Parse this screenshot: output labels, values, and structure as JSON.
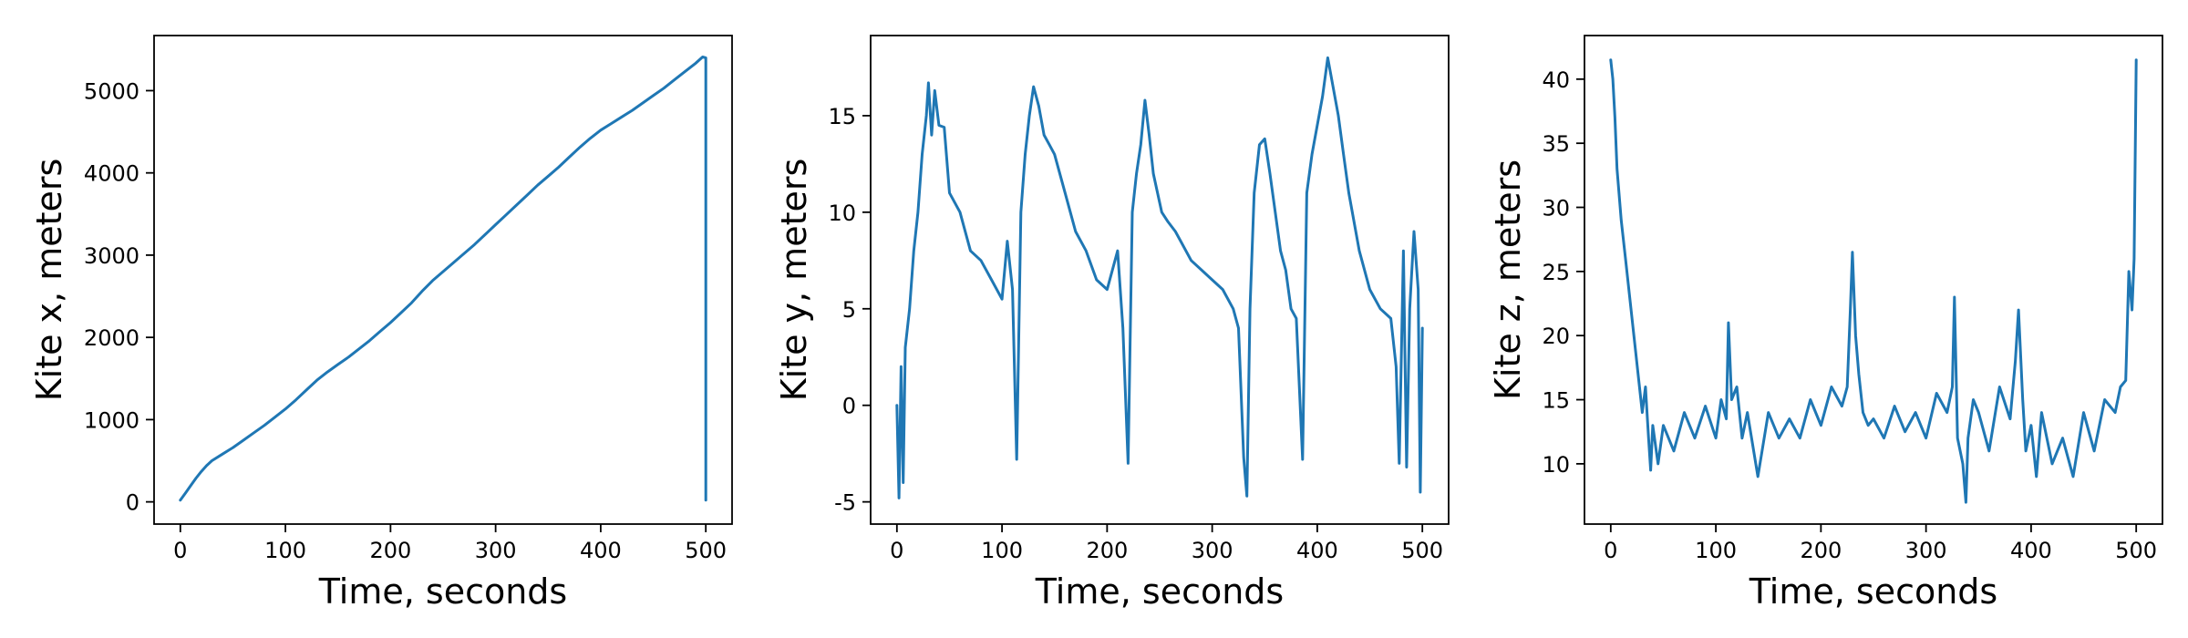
{
  "colors": {
    "series": "#1f77b4",
    "axes": "#000000",
    "background": "#ffffff"
  },
  "chart_data": [
    {
      "type": "line",
      "xlabel": "Time, seconds",
      "ylabel": "Kite x, meters",
      "xlim": [
        -25,
        525
      ],
      "ylim": [
        -270,
        5670
      ],
      "xticks": [
        0,
        100,
        200,
        300,
        400,
        500
      ],
      "yticks": [
        0,
        1000,
        2000,
        3000,
        4000,
        5000
      ],
      "grid": false,
      "legend": "none",
      "series": [
        {
          "x": [
            0,
            5,
            10,
            15,
            20,
            25,
            30,
            40,
            50,
            60,
            70,
            80,
            90,
            100,
            110,
            120,
            130,
            140,
            150,
            160,
            170,
            180,
            190,
            200,
            210,
            220,
            230,
            240,
            250,
            260,
            270,
            280,
            290,
            300,
            310,
            320,
            330,
            340,
            350,
            360,
            370,
            380,
            390,
            400,
            410,
            420,
            430,
            440,
            450,
            460,
            470,
            480,
            490,
            497,
            500,
            500,
            500
          ],
          "y": [
            20,
            110,
            200,
            290,
            370,
            440,
            500,
            580,
            660,
            750,
            840,
            930,
            1030,
            1130,
            1240,
            1360,
            1480,
            1580,
            1670,
            1760,
            1860,
            1960,
            2070,
            2180,
            2300,
            2420,
            2560,
            2690,
            2800,
            2910,
            3020,
            3130,
            3250,
            3370,
            3490,
            3610,
            3730,
            3850,
            3960,
            4070,
            4190,
            4310,
            4420,
            4520,
            4600,
            4680,
            4760,
            4850,
            4940,
            5030,
            5130,
            5230,
            5330,
            5410,
            5400,
            3000,
            20
          ]
        }
      ]
    },
    {
      "type": "line",
      "xlabel": "Time, seconds",
      "ylabel": "Kite y, meters",
      "xlim": [
        -25,
        525
      ],
      "ylim": [
        -6.15,
        19.15
      ],
      "xticks": [
        0,
        100,
        200,
        300,
        400,
        500
      ],
      "yticks": [
        -5,
        0,
        5,
        10,
        15
      ],
      "grid": false,
      "legend": "none",
      "series": [
        {
          "x": [
            0,
            2,
            4,
            6,
            8,
            12,
            16,
            20,
            24,
            28,
            30,
            33,
            36,
            40,
            45,
            50,
            60,
            70,
            80,
            90,
            100,
            105,
            110,
            114,
            118,
            122,
            126,
            130,
            135,
            140,
            145,
            150,
            160,
            170,
            180,
            190,
            200,
            210,
            215,
            220,
            224,
            228,
            232,
            236,
            240,
            244,
            248,
            252,
            258,
            265,
            270,
            280,
            290,
            300,
            310,
            320,
            325,
            330,
            333,
            336,
            340,
            345,
            350,
            355,
            360,
            365,
            370,
            375,
            380,
            386,
            390,
            395,
            400,
            405,
            410,
            415,
            420,
            425,
            430,
            440,
            450,
            460,
            470,
            475,
            478,
            482,
            485,
            488,
            492,
            496,
            498,
            500
          ],
          "y": [
            0,
            -4.8,
            2,
            -4,
            3,
            5,
            8,
            10,
            13,
            15,
            16.7,
            14,
            16.3,
            14.5,
            14.4,
            11,
            10,
            8,
            7.5,
            6.5,
            5.5,
            8.5,
            6,
            -2.8,
            10,
            13,
            15,
            16.5,
            15.5,
            14,
            13.5,
            13,
            11,
            9,
            8,
            6.5,
            6,
            8,
            4,
            -3,
            10,
            12,
            13.5,
            15.8,
            14,
            12,
            11,
            10,
            9.5,
            9,
            8.5,
            7.5,
            7,
            6.5,
            6,
            5,
            4,
            -2.7,
            -4.7,
            5,
            11,
            13.5,
            13.8,
            12,
            10,
            8,
            7,
            5,
            4.5,
            -2.8,
            11,
            13,
            14.5,
            16,
            18,
            16.5,
            15,
            13,
            11,
            8,
            6,
            5,
            4.5,
            2,
            -3,
            8,
            -3.2,
            5,
            9,
            6,
            -4.5,
            4
          ]
        }
      ]
    },
    {
      "type": "line",
      "xlabel": "Time, seconds",
      "ylabel": "Kite z, meters",
      "xlim": [
        -25,
        525
      ],
      "ylim": [
        5.3,
        43.4
      ],
      "xticks": [
        0,
        100,
        200,
        300,
        400,
        500
      ],
      "yticks": [
        10,
        15,
        20,
        25,
        30,
        35,
        40
      ],
      "grid": false,
      "legend": "none",
      "series": [
        {
          "x": [
            0,
            2,
            4,
            6,
            8,
            10,
            14,
            18,
            22,
            26,
            30,
            33,
            36,
            38,
            40,
            45,
            50,
            60,
            70,
            80,
            90,
            100,
            105,
            110,
            112,
            115,
            120,
            125,
            130,
            140,
            150,
            160,
            170,
            180,
            190,
            200,
            210,
            220,
            225,
            228,
            230,
            233,
            236,
            240,
            245,
            250,
            260,
            270,
            280,
            290,
            300,
            310,
            320,
            325,
            327,
            330,
            335,
            338,
            340,
            345,
            350,
            360,
            370,
            380,
            385,
            388,
            392,
            395,
            400,
            405,
            410,
            420,
            430,
            440,
            450,
            460,
            470,
            480,
            485,
            490,
            493,
            496,
            498,
            500
          ],
          "y": [
            41.5,
            40,
            37,
            33,
            31,
            29,
            26,
            23,
            20,
            17,
            14,
            16,
            12,
            9.5,
            13,
            10,
            13,
            11,
            14,
            12,
            14.5,
            12,
            15,
            13.5,
            21,
            15,
            16,
            12,
            14,
            9,
            14,
            12,
            13.5,
            12,
            15,
            13,
            16,
            14.5,
            16,
            22,
            26.5,
            20,
            17,
            14,
            13,
            13.5,
            12,
            14.5,
            12.5,
            14,
            12,
            15.5,
            14,
            16,
            23,
            12,
            10,
            7,
            12,
            15,
            14,
            11,
            16,
            13.5,
            18,
            22,
            15,
            11,
            13,
            9,
            14,
            10,
            12,
            9,
            14,
            11,
            15,
            14,
            16,
            16.5,
            25,
            22,
            26,
            41.5
          ]
        }
      ]
    }
  ]
}
